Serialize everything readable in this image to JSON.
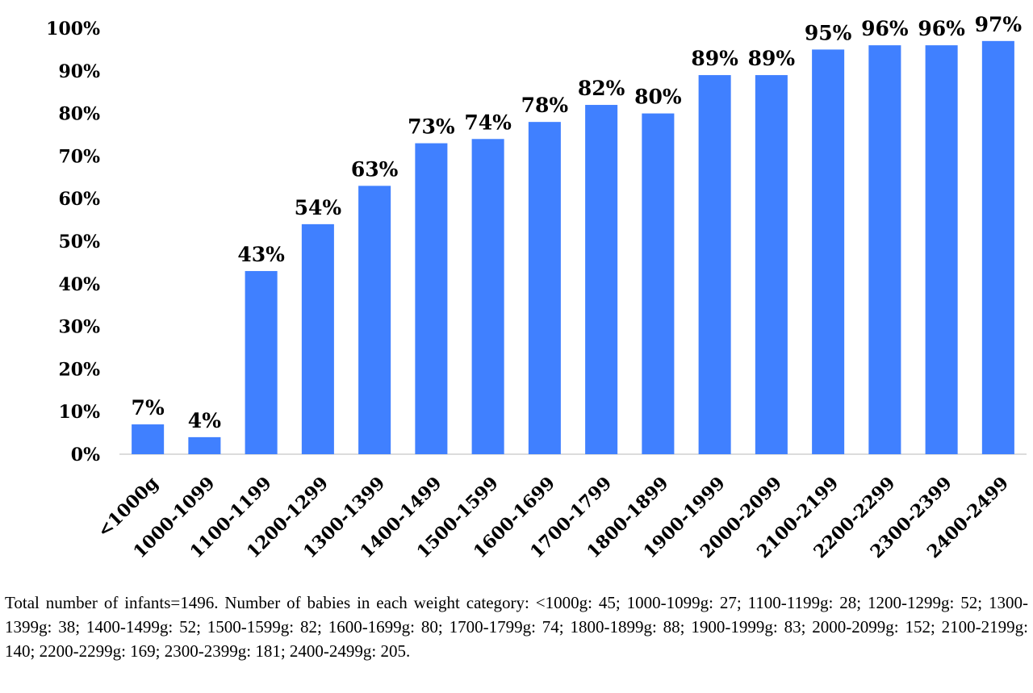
{
  "chart_data": {
    "type": "bar",
    "title": "",
    "xlabel": "",
    "ylabel": "",
    "ylim": [
      0,
      100
    ],
    "ytick_step": 10,
    "yticks": [
      "0%",
      "10%",
      "20%",
      "30%",
      "40%",
      "50%",
      "60%",
      "70%",
      "80%",
      "90%",
      "100%"
    ],
    "grid": false,
    "bar_color": "#4080ff",
    "categories": [
      "<1000g",
      "1000-1099",
      "1100-1199",
      "1200-1299",
      "1300-1399",
      "1400-1499",
      "1500-1599",
      "1600-1699",
      "1700-1799",
      "1800-1899",
      "1900-1999",
      "2000-2099",
      "2100-2199",
      "2200-2299",
      "2300-2399",
      "2400-2499"
    ],
    "values": [
      7,
      4,
      43,
      54,
      63,
      73,
      74,
      78,
      82,
      80,
      89,
      89,
      95,
      96,
      96,
      97
    ],
    "data_labels": [
      "7%",
      "4%",
      "43%",
      "54%",
      "63%",
      "73%",
      "74%",
      "78%",
      "82%",
      "80%",
      "89%",
      "89%",
      "95%",
      "96%",
      "96%",
      "97%"
    ]
  },
  "footnote": "Total number of infants=1496. Number of babies in each weight category: <1000g: 45; 1000-1099g: 27; 1100-1199g: 28; 1200-1299g: 52; 1300-1399g: 38; 1400-1499g: 52; 1500-1599g: 82; 1600-1699g: 80; 1700-1799g: 74; 1800-1899g: 88; 1900-1999g: 83; 2000-2099g: 152; 2100-2199g: 140; 2200-2299g: 169; 2300-2399g: 181; 2400-2499g: 205."
}
